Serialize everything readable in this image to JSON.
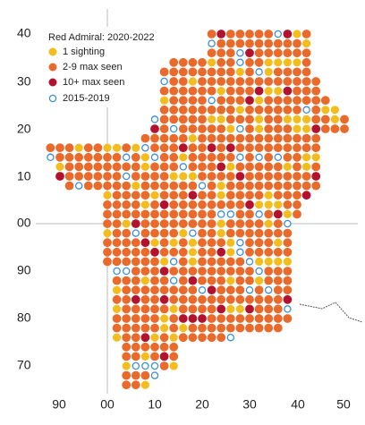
{
  "legend": {
    "title": "Red Admiral:  2020-2022",
    "items": [
      "1 sighting",
      "2-9 max seen",
      "10+ max seen",
      "2015-2019"
    ]
  },
  "x_labels": [
    "90",
    "00",
    "10",
    "20",
    "30",
    "40",
    "50"
  ],
  "y_labels": [
    "40",
    "30",
    "20",
    "10",
    "00",
    "90",
    "80",
    "70"
  ]
}
